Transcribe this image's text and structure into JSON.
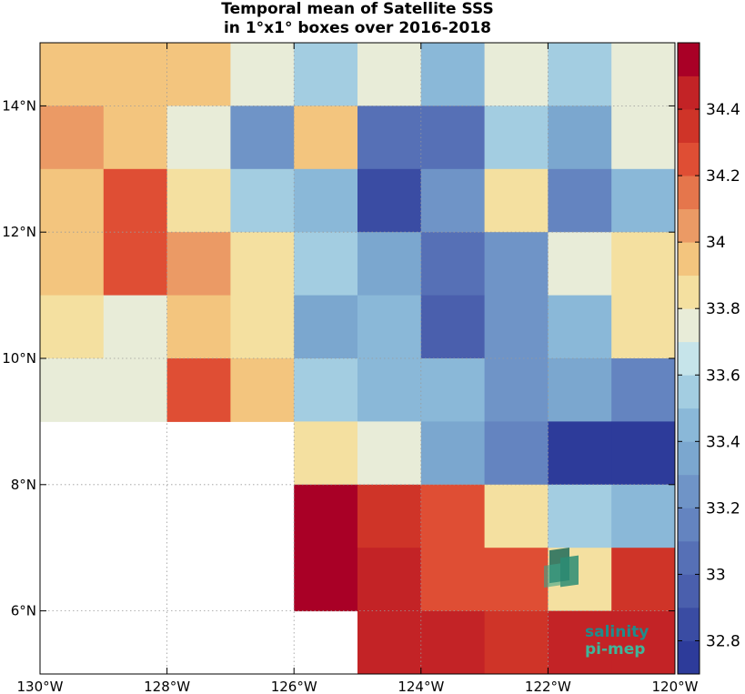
{
  "chart_data": {
    "type": "heatmap",
    "title": [
      "Temporal mean of Satellite SSS",
      "in 1°x1° boxes over 2016-2018"
    ],
    "x_range": [
      -130,
      -120
    ],
    "y_range": [
      5,
      15
    ],
    "x_ticks": [
      {
        "value": -130,
        "label": "130°W"
      },
      {
        "value": -128,
        "label": "128°W"
      },
      {
        "value": -126,
        "label": "126°W"
      },
      {
        "value": -124,
        "label": "124°W"
      },
      {
        "value": -122,
        "label": "122°W"
      },
      {
        "value": -120,
        "label": "120°W"
      }
    ],
    "y_ticks": [
      {
        "value": 6,
        "label": "6°N"
      },
      {
        "value": 8,
        "label": "8°N"
      },
      {
        "value": 10,
        "label": "10°N"
      },
      {
        "value": 12,
        "label": "12°N"
      },
      {
        "value": 14,
        "label": "14°N"
      }
    ],
    "grid": "dotted",
    "cell_size_deg": 1,
    "rows_lat_top": [
      15,
      14,
      13,
      12,
      11,
      10,
      9,
      8,
      7,
      6
    ],
    "values": [
      [
        34.0,
        34.0,
        34.0,
        33.7,
        33.55,
        33.7,
        33.45,
        33.7,
        33.55,
        33.7
      ],
      [
        34.1,
        34.0,
        33.8,
        33.25,
        34.0,
        33.1,
        33.05,
        33.55,
        33.35,
        33.8
      ],
      [
        34.0,
        34.25,
        33.9,
        33.55,
        33.45,
        32.9,
        33.2,
        33.9,
        33.15,
        33.45
      ],
      [
        34.0,
        34.25,
        34.1,
        33.9,
        33.55,
        33.35,
        33.1,
        33.2,
        33.8,
        33.9
      ],
      [
        33.9,
        33.8,
        34.0,
        33.9,
        33.35,
        33.45,
        33.0,
        33.2,
        33.45,
        33.9
      ],
      [
        33.7,
        33.8,
        34.3,
        34.0,
        33.55,
        33.45,
        33.45,
        33.3,
        33.35,
        33.15
      ],
      [
        null,
        null,
        null,
        null,
        33.9,
        33.7,
        33.35,
        33.15,
        32.75,
        32.75
      ],
      [
        null,
        null,
        null,
        null,
        34.55,
        34.35,
        34.25,
        33.9,
        33.55,
        33.45
      ],
      [
        null,
        null,
        null,
        null,
        34.55,
        34.45,
        34.3,
        34.25,
        33.9,
        34.35
      ],
      [
        null,
        null,
        null,
        null,
        null,
        34.45,
        34.45,
        34.35,
        34.5,
        34.5
      ]
    ],
    "colorbar": {
      "range": [
        32.7,
        34.6
      ],
      "ticks": [
        {
          "value": 32.8,
          "label": "32.8"
        },
        {
          "value": 33.0,
          "label": "33"
        },
        {
          "value": 33.2,
          "label": "33.2"
        },
        {
          "value": 33.4,
          "label": "33.4"
        },
        {
          "value": 33.6,
          "label": "33.6"
        },
        {
          "value": 33.8,
          "label": "33.8"
        },
        {
          "value": 34.0,
          "label": "34"
        },
        {
          "value": 34.2,
          "label": "34.2"
        },
        {
          "value": 34.4,
          "label": "34.4"
        }
      ],
      "colors_low_to_high": [
        "#2d3b9a",
        "#3a4ca3",
        "#4a5fad",
        "#5670b6",
        "#6484c0",
        "#6f94c7",
        "#7ba7cf",
        "#8ab8d8",
        "#a3cde1",
        "#c6e4ea",
        "#e8ecd8",
        "#f4e0a0",
        "#f3c57e",
        "#eb9a65",
        "#e5764c",
        "#df4e34",
        "#cf3428",
        "#c32326",
        "#a90026"
      ]
    }
  },
  "logo": {
    "line1": "salinity",
    "line2": "pi-mep"
  }
}
